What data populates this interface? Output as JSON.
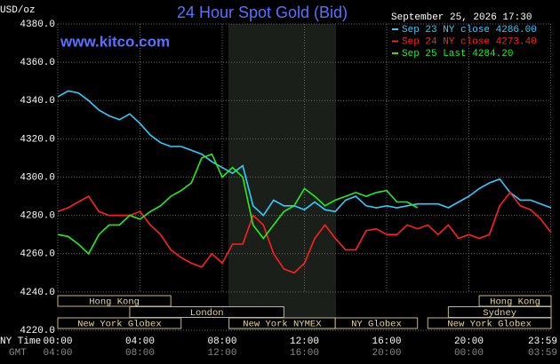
{
  "chart_data": {
    "type": "line",
    "title": "24 Hour Spot Gold (Bid)",
    "site": "www.kitco.com",
    "y_label": "USD/oz",
    "timestamp": "September 25, 2026 17:30",
    "x_row_label": "NY Time",
    "x2_row_label": "GMT",
    "x": [
      0,
      0.5,
      1,
      1.5,
      2,
      2.5,
      3,
      3.5,
      4,
      4.5,
      5,
      5.5,
      6,
      6.5,
      7,
      7.5,
      8,
      8.5,
      9,
      9.5,
      10,
      10.5,
      11,
      11.5,
      12,
      12.5,
      13,
      13.5,
      14,
      14.5,
      15,
      15.5,
      16,
      16.5,
      17,
      17.5,
      18,
      18.5,
      19,
      19.5,
      20,
      20.5,
      21,
      21.5,
      22,
      22.5,
      23,
      23.5,
      24
    ],
    "xlim": [
      0,
      24
    ],
    "xticks": [
      {
        "value": 0,
        "label": "00:00"
      },
      {
        "value": 4,
        "label": "04:00"
      },
      {
        "value": 8,
        "label": "08:00"
      },
      {
        "value": 12,
        "label": "12:00"
      },
      {
        "value": 16,
        "label": "16:00"
      },
      {
        "value": 20,
        "label": "20:00"
      },
      {
        "value": 23.98,
        "label": "23:59"
      }
    ],
    "x2_labels": [
      "04:00",
      "08:00",
      "12:00",
      "16:00",
      "20:00",
      "00:00",
      "03:59"
    ],
    "ylim": [
      4220,
      4380
    ],
    "yticks": [
      {
        "value": 4220,
        "label": "4220.0"
      },
      {
        "value": 4240,
        "label": "4240.0"
      },
      {
        "value": 4260,
        "label": "4260.0"
      },
      {
        "value": 4280,
        "label": "4280.0"
      },
      {
        "value": 4300,
        "label": "4300.0"
      },
      {
        "value": 4320,
        "label": "4320.0"
      },
      {
        "value": 4340,
        "label": "4340.0"
      },
      {
        "value": 4360,
        "label": "4360.0"
      },
      {
        "value": 4380,
        "label": "4380.0"
      }
    ],
    "grid": true,
    "series": [
      {
        "name": "Sep 23 NY close 4286.00",
        "color": "#33ccff",
        "values": [
          4342,
          4345,
          4344,
          4340,
          4335,
          4332,
          4330,
          4333,
          4328,
          4322,
          4318,
          4316,
          4316,
          4314,
          4312,
          4308,
          4305,
          4302,
          4306,
          4285,
          4280,
          4288,
          4285,
          4285,
          4283,
          4287,
          4283,
          4282,
          4288,
          4290,
          4285,
          4284,
          4285,
          4284,
          4285,
          4286,
          4286,
          4286,
          4284,
          4287,
          4290,
          4294,
          4297,
          4299,
          4292,
          4288,
          4288,
          4286,
          4284
        ]
      },
      {
        "name": "Sep 24 NY close 4273.40",
        "color": "#ff2020",
        "values": [
          4282,
          4284,
          4287,
          4290,
          4282,
          4280,
          4280,
          4280,
          4282,
          4275,
          4270,
          4262,
          4258,
          4255,
          4253,
          4260,
          4255,
          4265,
          4265,
          4280,
          4275,
          4260,
          4252,
          4250,
          4255,
          4268,
          4275,
          4268,
          4262,
          4262,
          4272,
          4273,
          4270,
          4270,
          4275,
          4273,
          4275,
          4270,
          4275,
          4268,
          4270,
          4268,
          4270,
          4285,
          4292,
          4285,
          4283,
          4278,
          4271
        ]
      },
      {
        "name": "Sep 25 Last 4284.20",
        "color": "#22ee22",
        "values": [
          4270,
          4269,
          4265,
          4260,
          4270,
          4275,
          4275,
          4280,
          4278,
          4282,
          4285,
          4290,
          4293,
          4297,
          4310,
          4312,
          4300,
          4305,
          4300,
          4275,
          4268,
          4275,
          4282,
          4285,
          4294,
          4290,
          4285,
          4288,
          4290,
          4292,
          4290,
          4292,
          4293,
          4287,
          4287,
          4284,
          null,
          null,
          null,
          null,
          null,
          null,
          null,
          null,
          null,
          null,
          null,
          null,
          null
        ]
      }
    ],
    "sessions": [
      {
        "label": "Hong Kong",
        "start": 0,
        "end": 5.5,
        "row": 0
      },
      {
        "label": "Hong Kong",
        "start": 20.5,
        "end": 24,
        "row": 0
      },
      {
        "label": "London",
        "start": 3.5,
        "end": 11,
        "row": 1
      },
      {
        "label": "Sydney",
        "start": 19,
        "end": 24,
        "row": 1
      },
      {
        "label": "New York Globex",
        "start": 0,
        "end": 6,
        "row": 2
      },
      {
        "label": "New York NYMEX",
        "start": 8.33,
        "end": 13.5,
        "row": 2
      },
      {
        "label": "NY Globex",
        "start": 13.5,
        "end": 17.5,
        "row": 2
      },
      {
        "label": "New York Globex",
        "start": 18,
        "end": 24,
        "row": 2
      }
    ]
  }
}
